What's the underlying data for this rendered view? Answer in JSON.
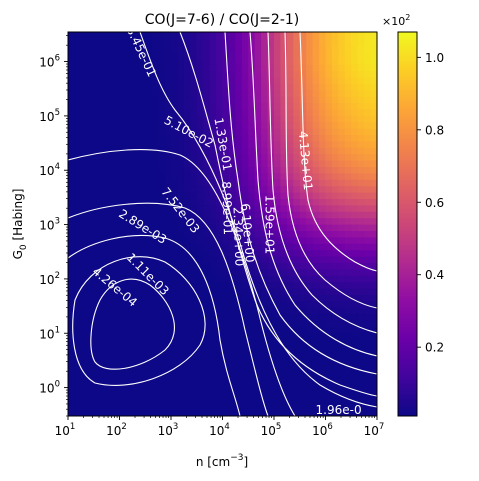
{
  "chart_data": {
    "type": "heatmap",
    "title": "CO(J=7-6) / CO(J=2-1)",
    "xlabel": "n [cm$^{-3}$]",
    "xlabel_main": "n [cm",
    "xlabel_sup": "−3",
    "xlabel_end": "]",
    "ylabel_main": "G",
    "ylabel_sub": "0",
    "ylabel_rest": " [Habing]",
    "xscale": "log",
    "yscale": "log",
    "xlim": [
      10,
      10000000
    ],
    "ylim": [
      0.3,
      3500000
    ],
    "x_ticks": [
      {
        "value": 10,
        "base": "10",
        "exp": "1"
      },
      {
        "value": 100,
        "base": "10",
        "exp": "2"
      },
      {
        "value": 1000,
        "base": "10",
        "exp": "3"
      },
      {
        "value": 10000,
        "base": "10",
        "exp": "4"
      },
      {
        "value": 100000,
        "base": "10",
        "exp": "5"
      },
      {
        "value": 1000000,
        "base": "10",
        "exp": "6"
      },
      {
        "value": 10000000,
        "base": "10",
        "exp": "7"
      }
    ],
    "y_ticks": [
      {
        "value": 1,
        "base": "10",
        "exp": "0"
      },
      {
        "value": 10,
        "base": "10",
        "exp": "1"
      },
      {
        "value": 100,
        "base": "10",
        "exp": "2"
      },
      {
        "value": 1000,
        "base": "10",
        "exp": "3"
      },
      {
        "value": 10000,
        "base": "10",
        "exp": "4"
      },
      {
        "value": 100000,
        "base": "10",
        "exp": "5"
      },
      {
        "value": 1000000,
        "base": "10",
        "exp": "6"
      }
    ],
    "colormap": "plasma",
    "colorbar": {
      "range": [
        0.01,
        1.07
      ],
      "ticks": [
        {
          "value": 0.2,
          "label": "0.2"
        },
        {
          "value": 0.4,
          "label": "0.4"
        },
        {
          "value": 0.6,
          "label": "0.6"
        },
        {
          "value": 0.8,
          "label": "0.8"
        },
        {
          "value": 1.0,
          "label": "1.0"
        }
      ],
      "multiplier_base": "×10",
      "multiplier_exp": "2"
    },
    "contour_levels": [
      "4.26e-04",
      "1.11e-03",
      "2.89e-03",
      "7.52e-03",
      "1.96e-02",
      "5.10e-02",
      "1.33e-01",
      "3.45e-01",
      "8.99e-01",
      "2.34e+00",
      "6.10e+00",
      "1.59e+01",
      "4.13e+01"
    ],
    "contour_labels": [
      {
        "text": "3.45e-01",
        "x": 260,
        "y": 1500000,
        "angle": 65
      },
      {
        "text": "5.10e-02",
        "x": 2200,
        "y": 50000,
        "angle": 28
      },
      {
        "text": "1.33e-01",
        "x": 10000,
        "y": 30000,
        "angle": 80
      },
      {
        "text": "4.13e+01",
        "x": 400000,
        "y": 15000,
        "angle": 85
      },
      {
        "text": "7.52e-03",
        "x": 1500,
        "y": 1800,
        "angle": 52
      },
      {
        "text": "8.99e-01",
        "x": 12000,
        "y": 2000,
        "angle": 88
      },
      {
        "text": "2.89e-03",
        "x": 280,
        "y": 900,
        "angle": 32
      },
      {
        "text": "6.10e+00",
        "x": 30000,
        "y": 700,
        "angle": 85
      },
      {
        "text": "2.34e+00",
        "x": 20000,
        "y": 600,
        "angle": 88
      },
      {
        "text": "1.59e+01",
        "x": 80000,
        "y": 1000,
        "angle": 90
      },
      {
        "text": "1.11e-03",
        "x": 350,
        "y": 120,
        "angle": 45
      },
      {
        "text": "4.26e-04",
        "x": 80,
        "y": 70,
        "angle": 40
      },
      {
        "text": "1.96e-0",
        "x": 1800000,
        "y": 0.38,
        "angle": 0
      }
    ],
    "grid": false
  }
}
